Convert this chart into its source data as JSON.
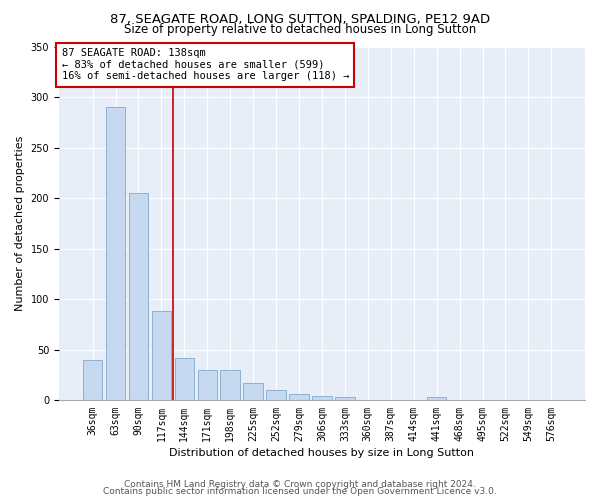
{
  "title_line1": "87, SEAGATE ROAD, LONG SUTTON, SPALDING, PE12 9AD",
  "title_line2": "Size of property relative to detached houses in Long Sutton",
  "xlabel": "Distribution of detached houses by size in Long Sutton",
  "ylabel": "Number of detached properties",
  "footer_line1": "Contains HM Land Registry data © Crown copyright and database right 2024.",
  "footer_line2": "Contains public sector information licensed under the Open Government Licence v3.0.",
  "annotation_line1": "87 SEAGATE ROAD: 138sqm",
  "annotation_line2": "← 83% of detached houses are smaller (599)",
  "annotation_line3": "16% of semi-detached houses are larger (118) →",
  "bar_labels": [
    "36sqm",
    "63sqm",
    "90sqm",
    "117sqm",
    "144sqm",
    "171sqm",
    "198sqm",
    "225sqm",
    "252sqm",
    "279sqm",
    "306sqm",
    "333sqm",
    "360sqm",
    "387sqm",
    "414sqm",
    "441sqm",
    "468sqm",
    "495sqm",
    "522sqm",
    "549sqm",
    "576sqm"
  ],
  "bar_values": [
    40,
    290,
    205,
    88,
    42,
    30,
    30,
    17,
    10,
    6,
    4,
    3,
    0,
    0,
    0,
    3,
    0,
    0,
    0,
    0,
    0
  ],
  "bar_color": "#c6d9f0",
  "bar_edge_color": "#7faacc",
  "vline_color": "#cc0000",
  "annotation_box_color": "#cc0000",
  "background_color": "#e8eef8",
  "ylim": [
    0,
    350
  ],
  "yticks": [
    0,
    50,
    100,
    150,
    200,
    250,
    300,
    350
  ],
  "grid_color": "#ffffff",
  "title_fontsize": 9.5,
  "subtitle_fontsize": 8.5,
  "axis_label_fontsize": 8,
  "tick_fontsize": 7,
  "footer_fontsize": 6.5,
  "annotation_fontsize": 7.5
}
